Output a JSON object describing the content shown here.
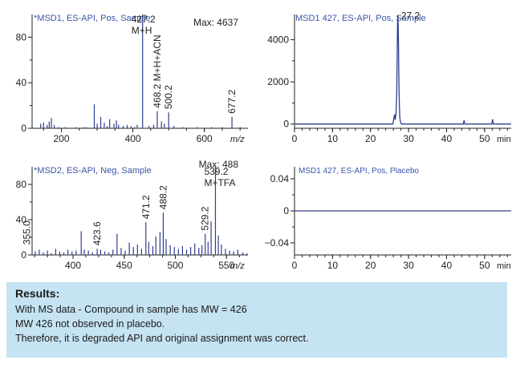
{
  "chart_data": [
    {
      "type": "bar",
      "title": "*MSD1, ES-API, Pos, Sample",
      "annotation": "Max: 4637",
      "xlabel": "m/z",
      "xlim": [
        118,
        722
      ],
      "ylim": [
        0,
        100
      ],
      "xticks": [
        200,
        400,
        600
      ],
      "yticks": [
        0,
        40,
        80
      ],
      "peak_labels": [
        {
          "x": 427.2,
          "y": 100,
          "text": "427.2",
          "sub": "M+H"
        },
        {
          "x": 468.2,
          "y": 15,
          "text": "468.2 M+H+ACN"
        },
        {
          "x": 500.2,
          "y": 14,
          "text": "500.2"
        },
        {
          "x": 677.2,
          "y": 10,
          "text": "677.2"
        }
      ],
      "bars": [
        [
          142,
          4
        ],
        [
          150,
          5
        ],
        [
          160,
          3
        ],
        [
          166,
          6
        ],
        [
          172,
          9
        ],
        [
          180,
          3
        ],
        [
          192,
          1
        ],
        [
          210,
          1
        ],
        [
          242,
          1
        ],
        [
          262,
          1
        ],
        [
          270,
          1
        ],
        [
          292,
          21
        ],
        [
          300,
          4
        ],
        [
          310,
          10
        ],
        [
          320,
          5
        ],
        [
          328,
          2
        ],
        [
          335,
          8
        ],
        [
          347,
          4
        ],
        [
          354,
          7
        ],
        [
          360,
          3
        ],
        [
          373,
          2
        ],
        [
          384,
          3
        ],
        [
          395,
          2
        ],
        [
          405,
          1
        ],
        [
          412,
          3
        ],
        [
          427.2,
          100
        ],
        [
          445,
          2
        ],
        [
          458,
          3
        ],
        [
          468.2,
          15
        ],
        [
          480,
          6
        ],
        [
          488,
          4
        ],
        [
          500.2,
          14
        ],
        [
          515,
          2
        ],
        [
          540,
          1
        ],
        [
          580,
          1
        ],
        [
          620,
          1
        ],
        [
          650,
          1
        ],
        [
          677.2,
          10
        ],
        [
          700,
          1
        ]
      ]
    },
    {
      "type": "line",
      "title": "MSD1 427, ES-API, Pos, Sample",
      "xlabel": "min",
      "xlim": [
        0,
        57
      ],
      "ylim": [
        -200,
        5200
      ],
      "xticks": [
        0,
        10,
        20,
        30,
        40,
        50
      ],
      "yticks": [
        0,
        2000,
        4000
      ],
      "peak_labels": [
        {
          "x": 27.2,
          "y": 5150,
          "text": "27.2"
        }
      ],
      "x": [
        0,
        25.9,
        26.1,
        26.3,
        26.5,
        26.7,
        26.9,
        27.0,
        27.1,
        27.2,
        27.3,
        27.4,
        27.5,
        27.7,
        27.9,
        28.2,
        44.4,
        44.6,
        44.8,
        51.9,
        52.1,
        52.3,
        57
      ],
      "y": [
        0,
        0,
        250,
        450,
        200,
        500,
        1500,
        3200,
        4800,
        5150,
        4500,
        3000,
        1400,
        300,
        60,
        0,
        0,
        180,
        0,
        0,
        230,
        0,
        0
      ]
    },
    {
      "type": "bar",
      "title": "*MSD2, ES-API, Neg, Sample",
      "annotation": "Max: 488",
      "xlabel": "m/z",
      "xlim": [
        360,
        571
      ],
      "ylim": [
        0,
        100
      ],
      "xticks": [
        400,
        450,
        500,
        550
      ],
      "yticks": [
        0,
        40,
        80
      ],
      "peak_labels": [
        {
          "x": 355.0,
          "y": 8,
          "text": "355.0"
        },
        {
          "x": 423.6,
          "y": 7,
          "text": "423.6"
        },
        {
          "x": 471.2,
          "y": 37,
          "text": "471.2"
        },
        {
          "x": 488.2,
          "y": 48,
          "text": "488.2"
        },
        {
          "x": 529.2,
          "y": 24,
          "text": "529.2"
        },
        {
          "x": 539.2,
          "y": 100,
          "text": "539.2",
          "sub": "M+TFA"
        }
      ],
      "bars": [
        [
          363,
          4
        ],
        [
          367,
          6
        ],
        [
          371,
          3
        ],
        [
          375,
          5
        ],
        [
          379,
          2
        ],
        [
          383,
          7
        ],
        [
          387,
          4
        ],
        [
          391,
          3
        ],
        [
          395,
          6
        ],
        [
          399,
          4
        ],
        [
          403,
          5
        ],
        [
          408,
          27
        ],
        [
          411,
          6
        ],
        [
          415,
          5
        ],
        [
          419,
          3
        ],
        [
          423.6,
          7
        ],
        [
          427,
          6
        ],
        [
          431,
          4
        ],
        [
          435,
          3
        ],
        [
          439,
          6
        ],
        [
          443,
          24
        ],
        [
          447,
          8
        ],
        [
          451,
          5
        ],
        [
          455,
          14
        ],
        [
          459,
          9
        ],
        [
          463,
          12
        ],
        [
          467,
          7
        ],
        [
          471.2,
          37
        ],
        [
          474,
          15
        ],
        [
          478,
          10
        ],
        [
          481,
          21
        ],
        [
          485,
          26
        ],
        [
          488.2,
          48
        ],
        [
          491,
          18
        ],
        [
          495,
          11
        ],
        [
          499,
          9
        ],
        [
          503,
          7
        ],
        [
          507,
          10
        ],
        [
          511,
          6
        ],
        [
          515,
          9
        ],
        [
          519,
          13
        ],
        [
          523,
          8
        ],
        [
          526,
          11
        ],
        [
          529.2,
          24
        ],
        [
          532,
          15
        ],
        [
          535,
          38
        ],
        [
          539.2,
          100
        ],
        [
          542,
          22
        ],
        [
          545,
          12
        ],
        [
          549,
          7
        ],
        [
          553,
          5
        ],
        [
          557,
          4
        ],
        [
          561,
          6
        ],
        [
          566,
          3
        ],
        [
          570,
          2
        ]
      ]
    },
    {
      "type": "line",
      "title": "MSD1 427, ES-API, Pos, Placebo",
      "xlabel": "min",
      "xlim": [
        0,
        57
      ],
      "ylim": [
        -0.055,
        0.055
      ],
      "xticks": [
        0,
        10,
        20,
        30,
        40,
        50
      ],
      "yticks": [
        -0.04,
        0,
        0.04
      ],
      "ytick_labels": [
        "−0.04",
        "0",
        "0.04"
      ],
      "x": [
        0,
        57
      ],
      "y": [
        0,
        0
      ]
    }
  ],
  "results": {
    "heading": "Results:",
    "lines": [
      "With MS data - Compound in sample has MW = 426",
      "MW 426 not observed in placebo.",
      "Therefore, it is degraded API and original assignment was correct."
    ]
  },
  "colors": {
    "trace": "#2f3f8f",
    "title": "#3a55a8",
    "axis": "#222222",
    "results_bg": "#c5e3f2"
  }
}
